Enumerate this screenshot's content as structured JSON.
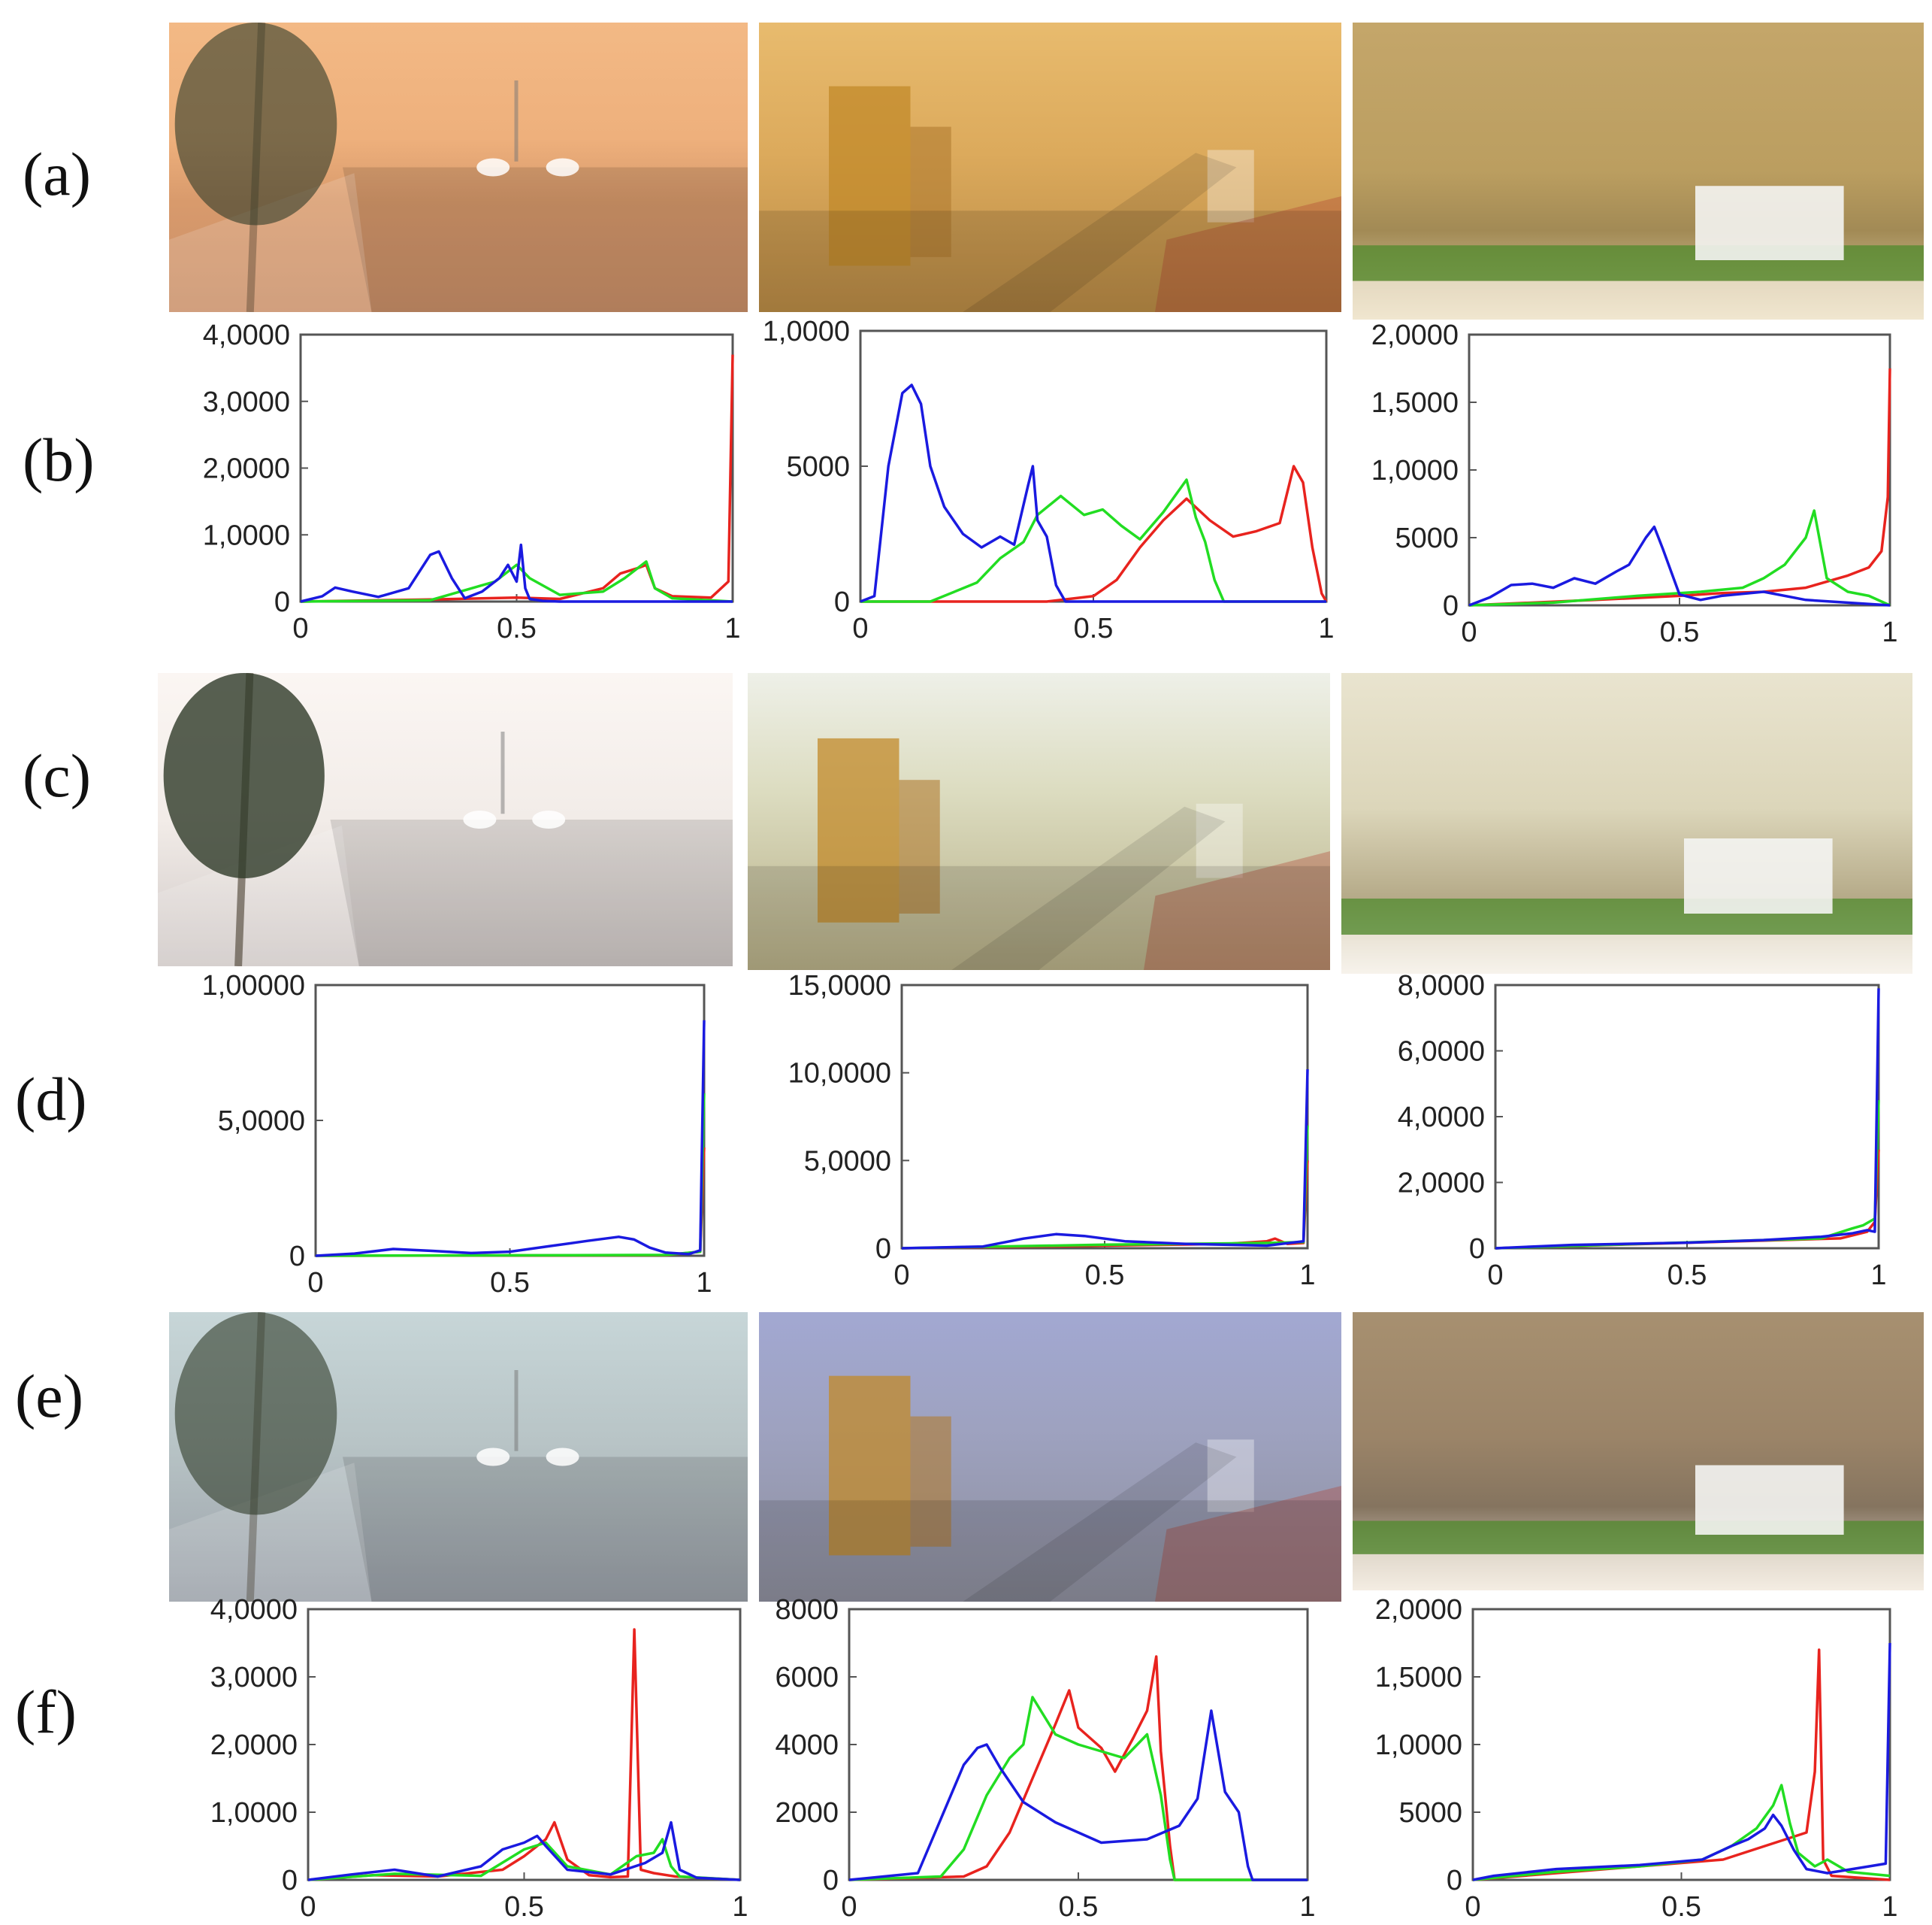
{
  "row_labels": [
    "(a)",
    "(b)",
    "(c)",
    "(d)",
    "(e)",
    "(f)"
  ],
  "colors": {
    "red": "#e8231e",
    "green": "#22dd22",
    "blue": "#1a1ae0",
    "axis": "#555555"
  },
  "photos": [
    {
      "group": "a",
      "scene": "street",
      "tone": "sandstorm-orange"
    },
    {
      "group": "a",
      "scene": "city",
      "tone": "sandstorm-amber"
    },
    {
      "group": "a",
      "scene": "dustwall",
      "tone": "sandstorm-tan"
    },
    {
      "group": "c",
      "scene": "street",
      "tone": "washed-white"
    },
    {
      "group": "c",
      "scene": "city",
      "tone": "washed-yellow"
    },
    {
      "group": "c",
      "scene": "dustwall",
      "tone": "washed-beige"
    },
    {
      "group": "e",
      "scene": "street",
      "tone": "grey-blue"
    },
    {
      "group": "e",
      "scene": "city",
      "tone": "lavender"
    },
    {
      "group": "e",
      "scene": "dustwall",
      "tone": "brown-pink"
    }
  ],
  "chart_data": [
    {
      "type": "line",
      "row": "b",
      "col": 1,
      "ylim": [
        0,
        40000
      ],
      "xlim": [
        0,
        1
      ],
      "yticks": [
        "0",
        "1,0000",
        "2,0000",
        "3,0000",
        "4,0000"
      ],
      "xticks": [
        "0",
        "0.5",
        "1"
      ],
      "series": [
        {
          "color": "red",
          "x": [
            0,
            0.3,
            0.5,
            0.6,
            0.7,
            0.74,
            0.78,
            0.8,
            0.82,
            0.86,
            0.95,
            0.99,
            1.0
          ],
          "y": [
            0,
            300,
            600,
            400,
            2000,
            4200,
            5000,
            5500,
            2000,
            800,
            600,
            3000,
            37000
          ]
        },
        {
          "color": "green",
          "x": [
            0,
            0.3,
            0.45,
            0.5,
            0.53,
            0.6,
            0.7,
            0.75,
            0.8,
            0.82,
            0.86,
            1.0
          ],
          "y": [
            0,
            200,
            3000,
            5500,
            3500,
            1000,
            1500,
            3500,
            6000,
            2000,
            500,
            0
          ]
        },
        {
          "color": "blue",
          "x": [
            0,
            0.05,
            0.08,
            0.12,
            0.18,
            0.25,
            0.3,
            0.32,
            0.35,
            0.38,
            0.42,
            0.46,
            0.48,
            0.5,
            0.51,
            0.52,
            0.53,
            0.56,
            0.6,
            1.0
          ],
          "y": [
            0,
            800,
            2100,
            1500,
            700,
            2000,
            7000,
            7500,
            3500,
            500,
            1500,
            3500,
            5500,
            3000,
            8500,
            2000,
            400,
            100,
            0,
            0
          ]
        }
      ]
    },
    {
      "type": "line",
      "row": "b",
      "col": 2,
      "ylim": [
        0,
        10000
      ],
      "xlim": [
        0,
        1
      ],
      "yticks": [
        "0",
        "5000",
        "1,0000"
      ],
      "xticks": [
        "0",
        "0.5",
        "1"
      ],
      "series": [
        {
          "color": "red",
          "x": [
            0,
            0.4,
            0.5,
            0.55,
            0.6,
            0.65,
            0.7,
            0.75,
            0.8,
            0.85,
            0.9,
            0.93,
            0.95,
            0.97,
            0.99,
            1.0
          ],
          "y": [
            0,
            0,
            200,
            800,
            2000,
            3000,
            3800,
            3000,
            2400,
            2600,
            2900,
            5000,
            4400,
            2000,
            300,
            0
          ]
        },
        {
          "color": "green",
          "x": [
            0,
            0.15,
            0.25,
            0.3,
            0.35,
            0.38,
            0.43,
            0.48,
            0.52,
            0.56,
            0.6,
            0.65,
            0.7,
            0.72,
            0.74,
            0.76,
            0.78,
            1.0
          ],
          "y": [
            0,
            0,
            700,
            1600,
            2200,
            3200,
            3900,
            3200,
            3400,
            2800,
            2300,
            3300,
            4500,
            3100,
            2200,
            800,
            0,
            0
          ]
        },
        {
          "color": "blue",
          "x": [
            0,
            0.03,
            0.06,
            0.09,
            0.11,
            0.13,
            0.15,
            0.18,
            0.22,
            0.26,
            0.3,
            0.33,
            0.36,
            0.37,
            0.38,
            0.4,
            0.42,
            0.44,
            1.0
          ],
          "y": [
            0,
            200,
            5000,
            7700,
            8000,
            7300,
            5000,
            3500,
            2500,
            2000,
            2400,
            2100,
            4300,
            5000,
            3000,
            2400,
            600,
            0,
            0
          ]
        }
      ]
    },
    {
      "type": "line",
      "row": "b",
      "col": 3,
      "ylim": [
        0,
        20000
      ],
      "xlim": [
        0,
        1
      ],
      "yticks": [
        "0",
        "5000",
        "1,0000",
        "1,5000",
        "2,0000"
      ],
      "xticks": [
        "0",
        "0.5",
        "1"
      ],
      "series": [
        {
          "color": "red",
          "x": [
            0,
            0.3,
            0.5,
            0.6,
            0.7,
            0.8,
            0.9,
            0.95,
            0.98,
            0.995,
            1.0
          ],
          "y": [
            0,
            400,
            700,
            900,
            1000,
            1300,
            2200,
            2800,
            4000,
            8000,
            17500
          ]
        },
        {
          "color": "green",
          "x": [
            0,
            0.2,
            0.4,
            0.55,
            0.65,
            0.7,
            0.75,
            0.8,
            0.82,
            0.85,
            0.9,
            0.95,
            1.0
          ],
          "y": [
            0,
            200,
            700,
            1000,
            1300,
            2000,
            3000,
            5000,
            7000,
            2000,
            1000,
            700,
            0
          ]
        },
        {
          "color": "blue",
          "x": [
            0,
            0.05,
            0.1,
            0.15,
            0.2,
            0.25,
            0.3,
            0.35,
            0.38,
            0.42,
            0.44,
            0.46,
            0.5,
            0.55,
            0.6,
            0.7,
            0.8,
            1.0
          ],
          "y": [
            0,
            600,
            1500,
            1600,
            1300,
            2000,
            1600,
            2500,
            3000,
            5000,
            5800,
            4200,
            800,
            400,
            700,
            1000,
            400,
            0
          ]
        }
      ]
    },
    {
      "type": "line",
      "row": "d",
      "col": 1,
      "ylim": [
        0,
        100000
      ],
      "xlim": [
        0,
        1
      ],
      "yticks": [
        "0",
        "5,0000",
        "1,00000"
      ],
      "xticks": [
        "0",
        "0.5",
        "1"
      ],
      "series": [
        {
          "color": "red",
          "x": [
            0,
            0.9,
            0.99,
            1.0
          ],
          "y": [
            0,
            200,
            1500,
            40000
          ]
        },
        {
          "color": "green",
          "x": [
            0,
            0.9,
            0.99,
            1.0
          ],
          "y": [
            0,
            300,
            1500,
            60000
          ]
        },
        {
          "color": "blue",
          "x": [
            0,
            0.1,
            0.2,
            0.3,
            0.4,
            0.5,
            0.6,
            0.7,
            0.78,
            0.82,
            0.86,
            0.9,
            0.96,
            0.99,
            1.0
          ],
          "y": [
            0,
            800,
            2500,
            1800,
            1000,
            1500,
            3500,
            5500,
            7000,
            6000,
            3000,
            1200,
            600,
            2000,
            87000
          ]
        }
      ]
    },
    {
      "type": "line",
      "row": "d",
      "col": 2,
      "ylim": [
        0,
        150000
      ],
      "xlim": [
        0,
        1
      ],
      "yticks": [
        "0",
        "5,0000",
        "10,0000",
        "15,0000"
      ],
      "xticks": [
        "0",
        "0.5",
        "1"
      ],
      "series": [
        {
          "color": "red",
          "x": [
            0,
            0.5,
            0.8,
            0.9,
            0.92,
            0.95,
            0.99,
            1.0
          ],
          "y": [
            0,
            1500,
            2500,
            4000,
            5500,
            2500,
            3000,
            50000
          ]
        },
        {
          "color": "green",
          "x": [
            0,
            0.5,
            0.9,
            0.99,
            1.0
          ],
          "y": [
            0,
            2000,
            3000,
            3500,
            70000
          ]
        },
        {
          "color": "blue",
          "x": [
            0,
            0.2,
            0.3,
            0.38,
            0.45,
            0.55,
            0.7,
            0.9,
            0.99,
            1.0
          ],
          "y": [
            0,
            1000,
            5500,
            8000,
            7000,
            4000,
            2500,
            1500,
            4000,
            102000
          ]
        }
      ]
    },
    {
      "type": "line",
      "row": "d",
      "col": 3,
      "ylim": [
        0,
        80000
      ],
      "xlim": [
        0,
        1
      ],
      "yticks": [
        "0",
        "2,0000",
        "4,0000",
        "6,0000",
        "8,0000"
      ],
      "xticks": [
        "0",
        "0.5",
        "1"
      ],
      "series": [
        {
          "color": "red",
          "x": [
            0,
            0.9,
            0.97,
            0.99,
            1.0
          ],
          "y": [
            0,
            3000,
            5000,
            8000,
            30000
          ]
        },
        {
          "color": "green",
          "x": [
            0,
            0.85,
            0.93,
            0.96,
            0.99,
            1.0
          ],
          "y": [
            0,
            3000,
            6000,
            7000,
            9000,
            45000
          ]
        },
        {
          "color": "blue",
          "x": [
            0,
            0.2,
            0.5,
            0.7,
            0.85,
            0.93,
            0.97,
            0.99,
            1.0
          ],
          "y": [
            0,
            1000,
            1700,
            2500,
            3500,
            4500,
            5500,
            5000,
            79000
          ]
        }
      ]
    },
    {
      "type": "line",
      "row": "f",
      "col": 1,
      "ylim": [
        0,
        40000
      ],
      "xlim": [
        0,
        1
      ],
      "yticks": [
        "0",
        "1,0000",
        "2,0000",
        "3,0000",
        "4,0000"
      ],
      "xticks": [
        "0",
        "0.5",
        "1"
      ],
      "series": [
        {
          "color": "red",
          "x": [
            0,
            0.15,
            0.3,
            0.45,
            0.5,
            0.55,
            0.57,
            0.6,
            0.65,
            0.7,
            0.74,
            0.755,
            0.77,
            0.8,
            0.85,
            1.0
          ],
          "y": [
            0,
            700,
            500,
            1500,
            3500,
            6000,
            8500,
            3000,
            700,
            400,
            500,
            37000,
            1500,
            1000,
            500,
            0
          ]
        },
        {
          "color": "green",
          "x": [
            0,
            0.2,
            0.4,
            0.5,
            0.55,
            0.6,
            0.7,
            0.76,
            0.8,
            0.82,
            0.84,
            0.86,
            1.0
          ],
          "y": [
            0,
            900,
            600,
            4500,
            5500,
            2000,
            800,
            3500,
            4000,
            6000,
            2000,
            500,
            0
          ]
        },
        {
          "color": "blue",
          "x": [
            0,
            0.1,
            0.2,
            0.3,
            0.4,
            0.45,
            0.5,
            0.53,
            0.55,
            0.6,
            0.7,
            0.78,
            0.82,
            0.84,
            0.86,
            0.9,
            1.0
          ],
          "y": [
            0,
            800,
            1500,
            500,
            2000,
            4500,
            5500,
            6500,
            5000,
            1500,
            800,
            2500,
            4000,
            8500,
            1500,
            300,
            0
          ]
        }
      ]
    },
    {
      "type": "line",
      "row": "f",
      "col": 2,
      "ylim": [
        0,
        8000
      ],
      "xlim": [
        0,
        1
      ],
      "yticks": [
        "0",
        "2000",
        "4000",
        "6000",
        "8000"
      ],
      "xticks": [
        "0",
        "0.5",
        "1"
      ],
      "series": [
        {
          "color": "red",
          "x": [
            0,
            0.25,
            0.3,
            0.35,
            0.4,
            0.45,
            0.48,
            0.5,
            0.55,
            0.58,
            0.62,
            0.65,
            0.67,
            0.68,
            0.7,
            0.71,
            1.0
          ],
          "y": [
            0,
            100,
            400,
            1400,
            3000,
            4600,
            5600,
            4500,
            3900,
            3200,
            4200,
            5000,
            6600,
            3800,
            1000,
            0,
            0
          ]
        },
        {
          "color": "green",
          "x": [
            0,
            0.2,
            0.25,
            0.3,
            0.35,
            0.38,
            0.4,
            0.45,
            0.5,
            0.55,
            0.6,
            0.65,
            0.68,
            0.7,
            0.71,
            1.0
          ],
          "y": [
            0,
            100,
            900,
            2500,
            3600,
            4000,
            5400,
            4300,
            4000,
            3800,
            3600,
            4300,
            2500,
            600,
            0,
            0
          ]
        },
        {
          "color": "blue",
          "x": [
            0,
            0.15,
            0.2,
            0.25,
            0.28,
            0.3,
            0.33,
            0.38,
            0.45,
            0.55,
            0.65,
            0.72,
            0.76,
            0.79,
            0.82,
            0.85,
            0.87,
            0.88,
            1.0
          ],
          "y": [
            0,
            200,
            1800,
            3400,
            3900,
            4000,
            3300,
            2300,
            1700,
            1100,
            1200,
            1600,
            2400,
            5000,
            2600,
            2000,
            400,
            0,
            0
          ]
        }
      ]
    },
    {
      "type": "line",
      "row": "f",
      "col": 3,
      "ylim": [
        0,
        20000
      ],
      "xlim": [
        0,
        1
      ],
      "yticks": [
        "0",
        "5000",
        "1,0000",
        "1,5000",
        "2,0000"
      ],
      "xticks": [
        "0",
        "0.5",
        "1"
      ],
      "series": [
        {
          "color": "red",
          "x": [
            0,
            0.2,
            0.4,
            0.6,
            0.7,
            0.75,
            0.8,
            0.82,
            0.83,
            0.84,
            0.86,
            1.0
          ],
          "y": [
            0,
            500,
            1000,
            1500,
            2500,
            3000,
            3500,
            8000,
            17000,
            1500,
            300,
            0
          ]
        },
        {
          "color": "green",
          "x": [
            0,
            0.2,
            0.4,
            0.55,
            0.62,
            0.68,
            0.72,
            0.74,
            0.76,
            0.78,
            0.82,
            0.85,
            0.9,
            1.0
          ],
          "y": [
            0,
            600,
            1000,
            1500,
            2500,
            3800,
            5500,
            7000,
            4200,
            2000,
            1000,
            1500,
            600,
            300
          ]
        },
        {
          "color": "blue",
          "x": [
            0,
            0.05,
            0.2,
            0.4,
            0.55,
            0.62,
            0.66,
            0.7,
            0.72,
            0.74,
            0.77,
            0.8,
            0.85,
            0.95,
            0.99,
            1.0
          ],
          "y": [
            0,
            300,
            800,
            1100,
            1500,
            2500,
            3000,
            3800,
            4800,
            4000,
            2200,
            800,
            500,
            1000,
            1200,
            17500
          ]
        }
      ]
    }
  ]
}
